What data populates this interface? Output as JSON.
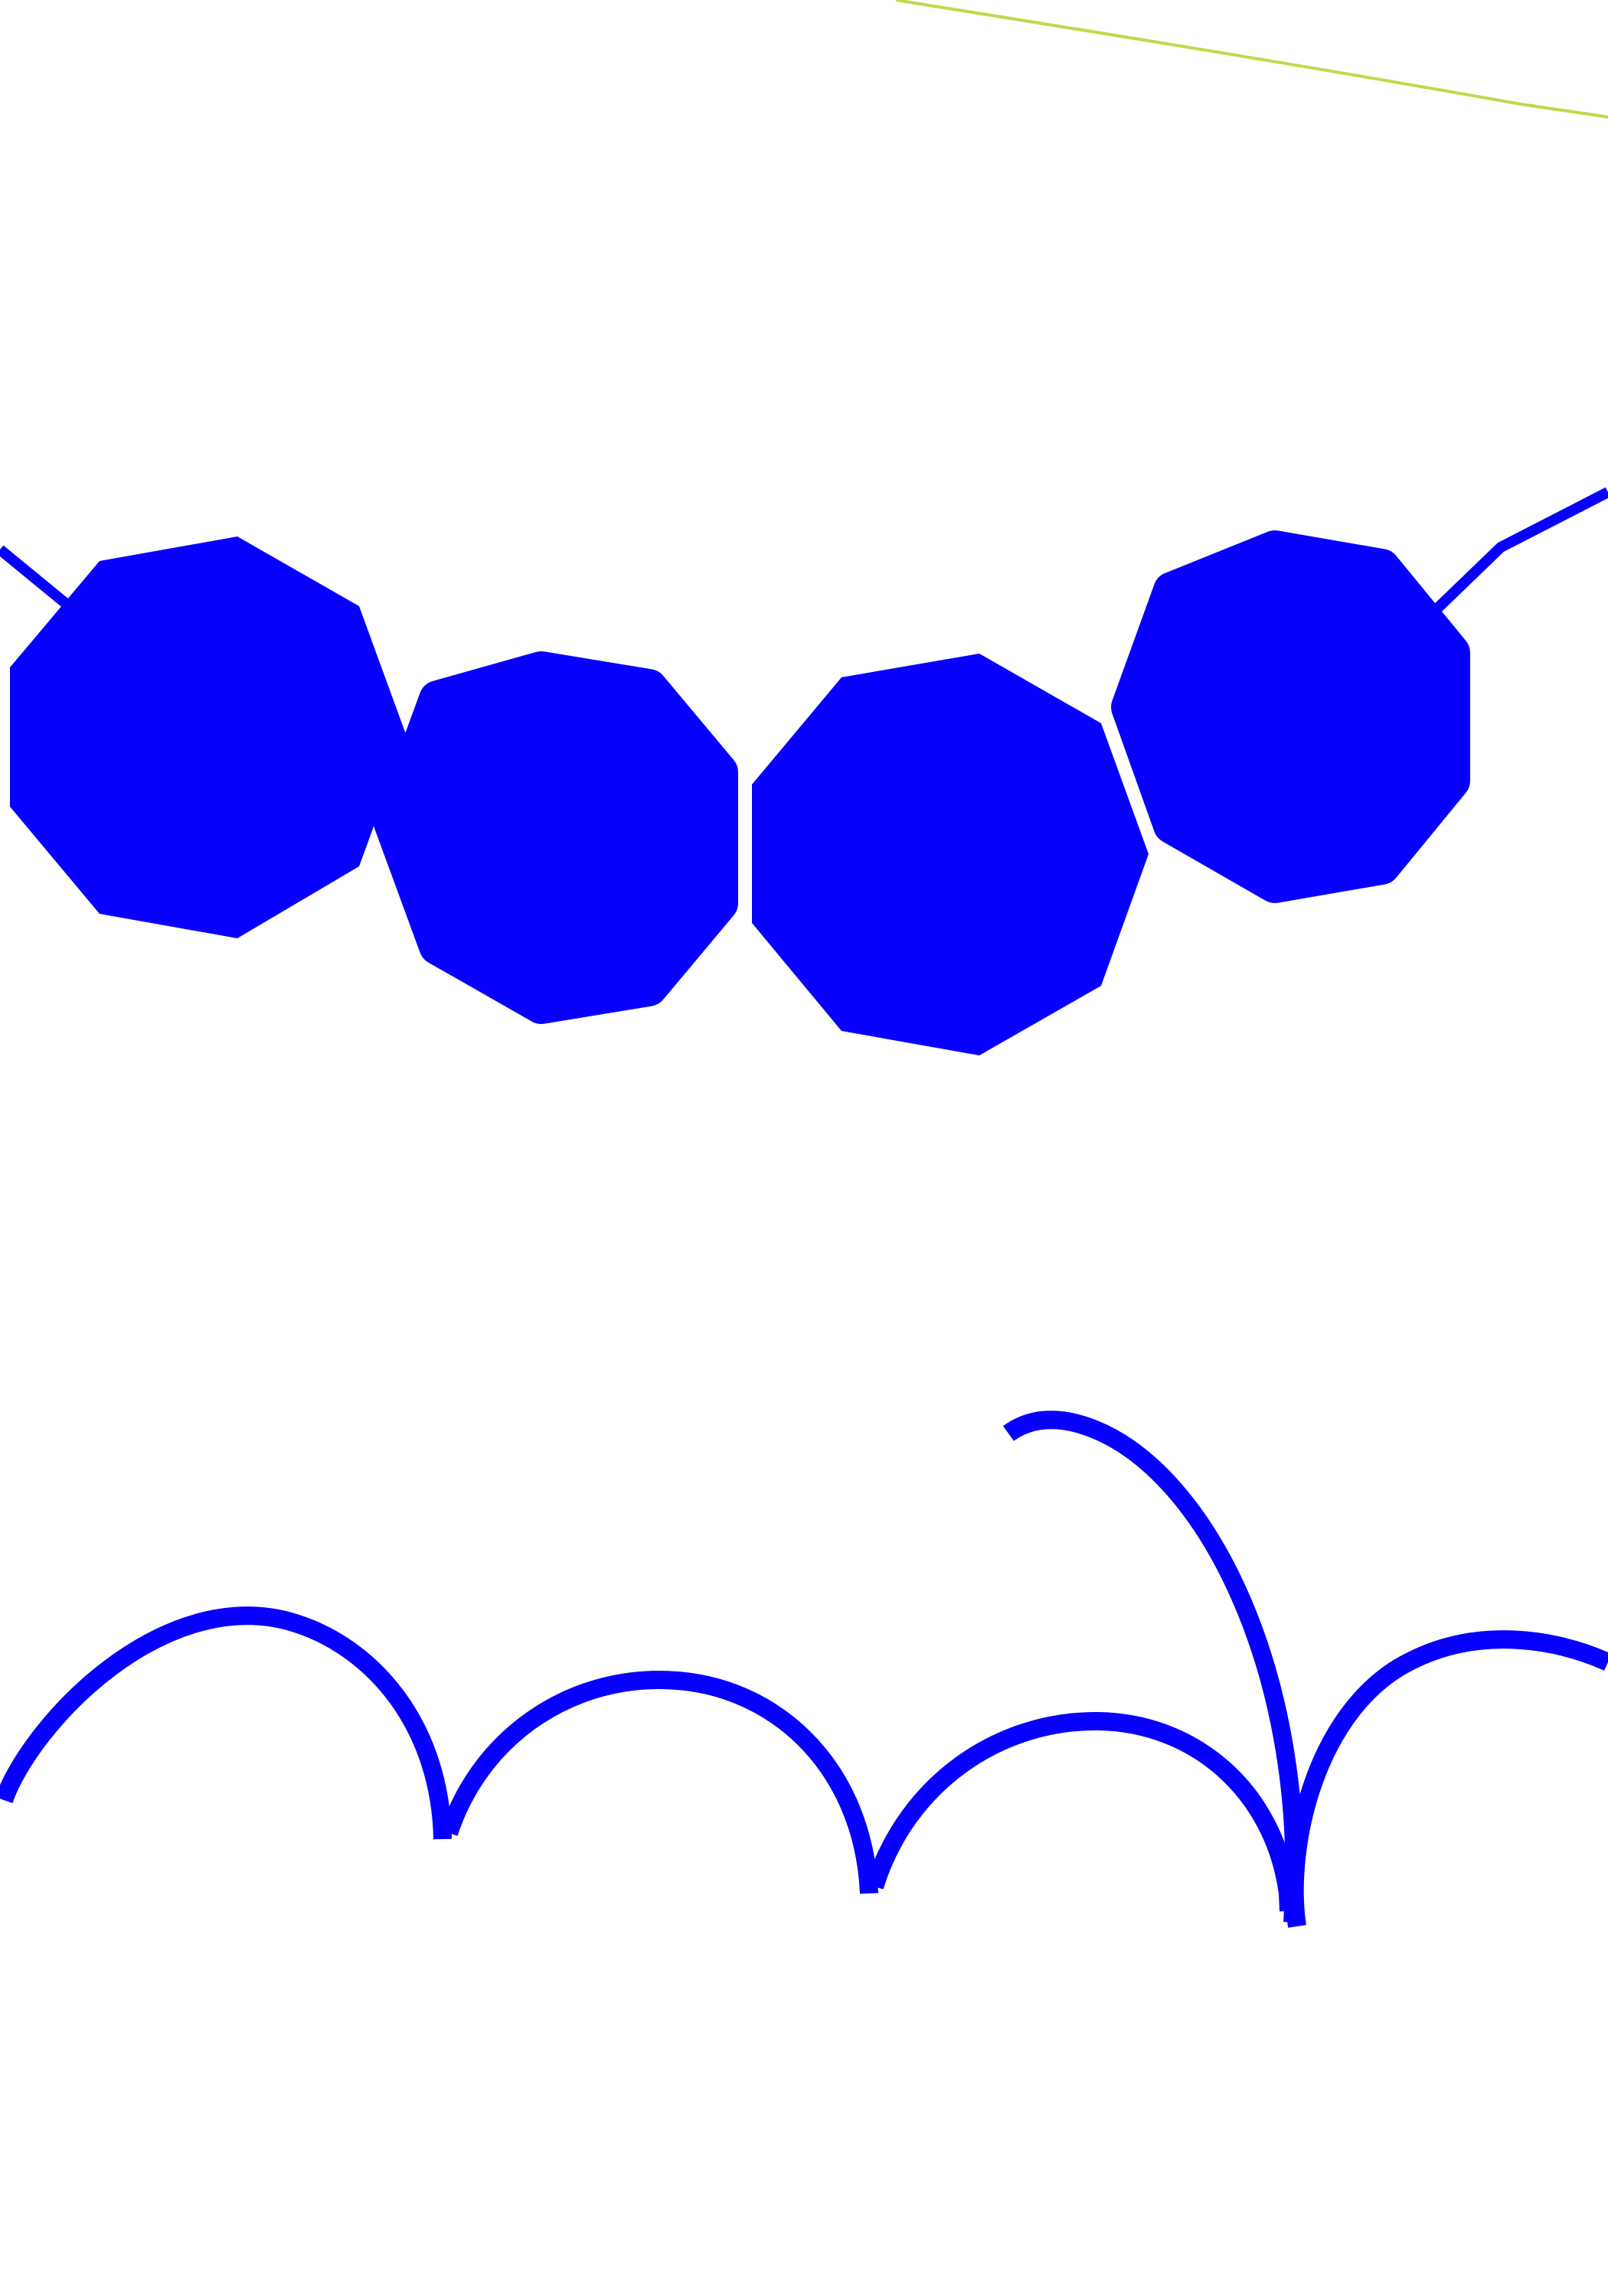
{
  "colors": {
    "background": "#ffffff",
    "primary_blue": "#0800ff",
    "accent_line": "#c5d64a"
  },
  "shapes": {
    "nonagons": [
      {
        "name": "nonagon-1",
        "style": "sharp"
      },
      {
        "name": "nonagon-2",
        "style": "rounded"
      },
      {
        "name": "nonagon-3",
        "style": "sharp"
      },
      {
        "name": "nonagon-4",
        "style": "rounded"
      }
    ],
    "connectors": [
      "connector-left",
      "connector-right",
      "accent-line-top"
    ],
    "scallop_arcs": 4,
    "tall_loop": true
  }
}
